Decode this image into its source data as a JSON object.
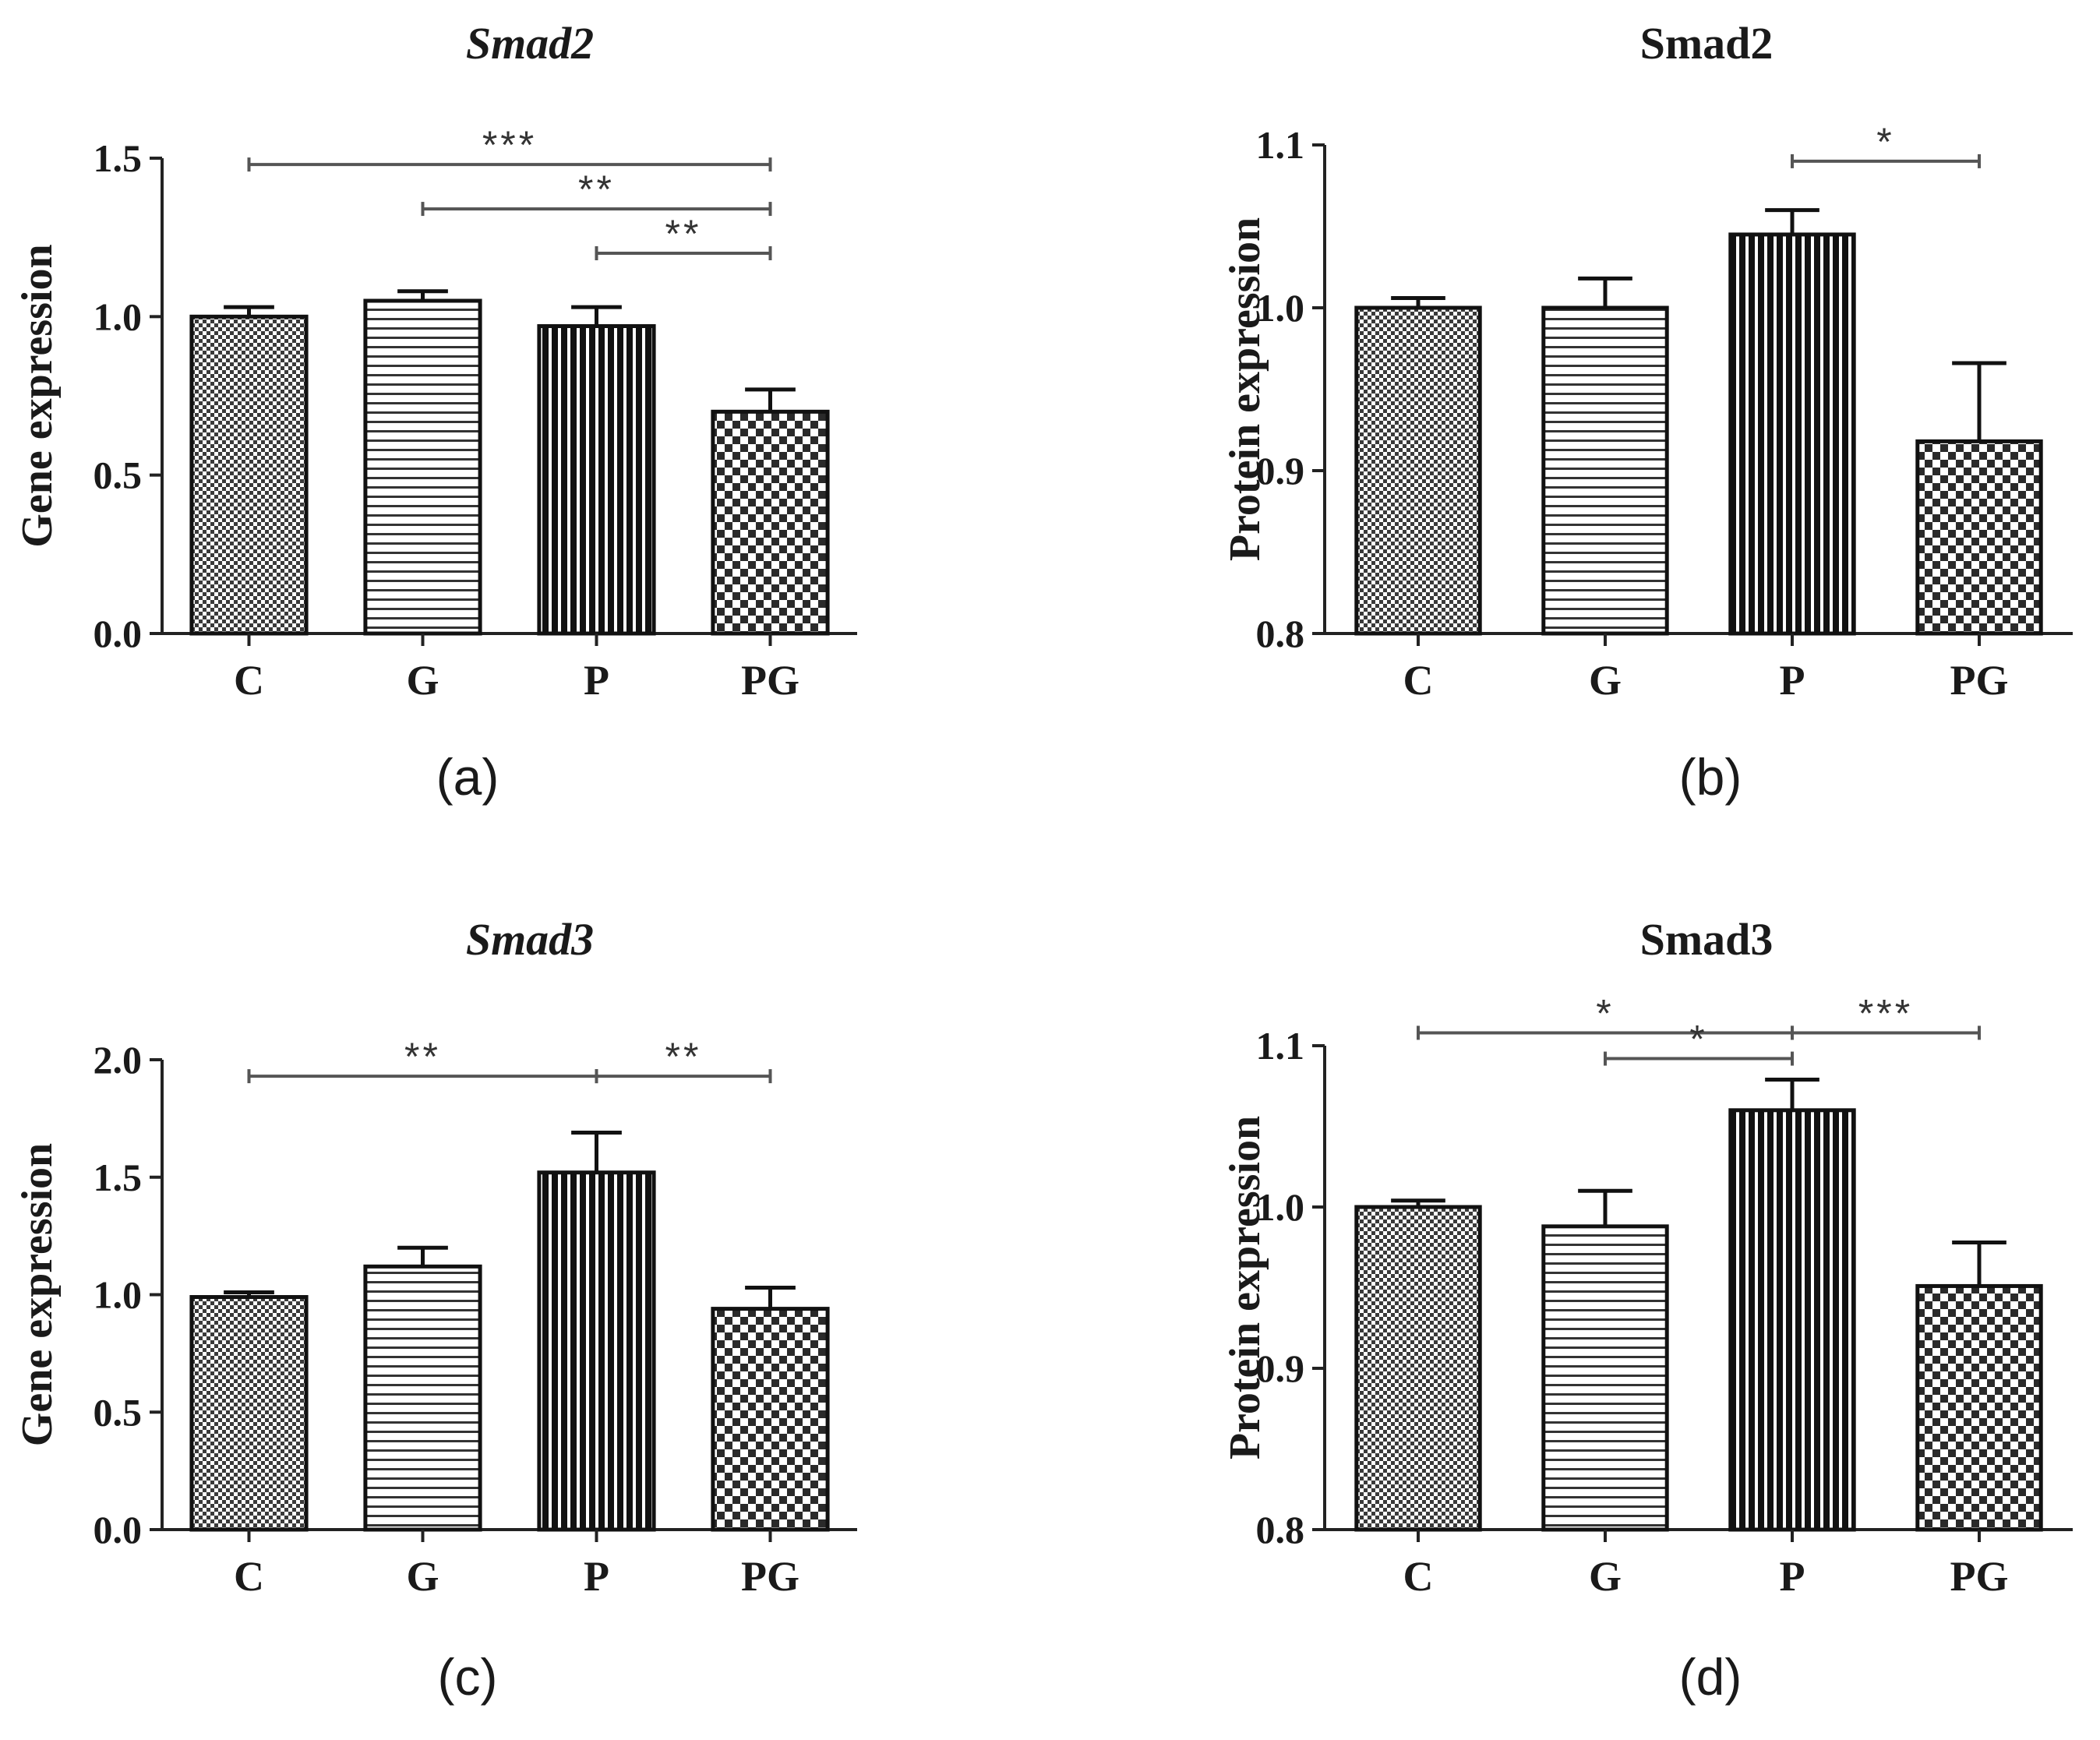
{
  "chart_data": [
    {
      "type": "bar",
      "panel": "(a)",
      "title": "Smad2",
      "title_italic": true,
      "ylabel": "Gene expression",
      "xlabel": "",
      "categories": [
        "C",
        "G",
        "P",
        "PG"
      ],
      "values": [
        1.0,
        1.05,
        0.97,
        0.7
      ],
      "errors": [
        0.03,
        0.03,
        0.06,
        0.07
      ],
      "ylim": [
        0.0,
        1.5
      ],
      "yticks": [
        "0.0",
        "0.5",
        "1.0",
        "1.5"
      ],
      "ytick_values": [
        0.0,
        0.5,
        1.0,
        1.5
      ],
      "significance": [
        {
          "from": 0,
          "to": 3,
          "label": "***",
          "y": 1.48
        },
        {
          "from": 1,
          "to": 3,
          "label": "**",
          "y": 1.34
        },
        {
          "from": 2,
          "to": 3,
          "label": "**",
          "y": 1.2
        }
      ]
    },
    {
      "type": "bar",
      "panel": "(b)",
      "title": "Smad2",
      "title_italic": false,
      "ylabel": "Protein expression",
      "xlabel": "",
      "categories": [
        "C",
        "G",
        "P",
        "PG"
      ],
      "values": [
        1.0,
        1.0,
        1.045,
        0.918
      ],
      "errors": [
        0.006,
        0.018,
        0.015,
        0.048
      ],
      "ylim": [
        0.8,
        1.1
      ],
      "yticks": [
        "0.8",
        "0.9",
        "1.0",
        "1.1"
      ],
      "ytick_values": [
        0.8,
        0.9,
        1.0,
        1.1
      ],
      "significance": [
        {
          "from": 2,
          "to": 3,
          "label": "*",
          "y": 1.09
        }
      ]
    },
    {
      "type": "bar",
      "panel": "(c)",
      "title": "Smad3",
      "title_italic": true,
      "ylabel": "Gene expression",
      "xlabel": "",
      "categories": [
        "C",
        "G",
        "P",
        "PG"
      ],
      "values": [
        0.99,
        1.12,
        1.52,
        0.94
      ],
      "errors": [
        0.02,
        0.08,
        0.17,
        0.09
      ],
      "ylim": [
        0.0,
        2.0
      ],
      "yticks": [
        "0.0",
        "0.5",
        "1.0",
        "1.5",
        "2.0"
      ],
      "ytick_values": [
        0.0,
        0.5,
        1.0,
        1.5,
        2.0
      ],
      "significance": [
        {
          "from": 0,
          "to": 2,
          "label": "**",
          "y": 1.93
        },
        {
          "from": 2,
          "to": 3,
          "label": "**",
          "y": 1.93
        }
      ]
    },
    {
      "type": "bar",
      "panel": "(d)",
      "title": "Smad3",
      "title_italic": false,
      "ylabel": "Protein expression",
      "xlabel": "",
      "categories": [
        "C",
        "G",
        "P",
        "PG"
      ],
      "values": [
        1.0,
        0.988,
        1.06,
        0.951
      ],
      "errors": [
        0.004,
        0.022,
        0.019,
        0.027
      ],
      "ylim": [
        0.8,
        1.1
      ],
      "yticks": [
        "0.8",
        "0.9",
        "1.0",
        "1.1"
      ],
      "ytick_values": [
        0.8,
        0.9,
        1.0,
        1.1
      ],
      "significance": [
        {
          "from": 0,
          "to": 2,
          "label": "*",
          "y": 1.108
        },
        {
          "from": 1,
          "to": 2,
          "label": "*",
          "y": 1.092
        },
        {
          "from": 2,
          "to": 3,
          "label": "***",
          "y": 1.108
        }
      ]
    }
  ]
}
